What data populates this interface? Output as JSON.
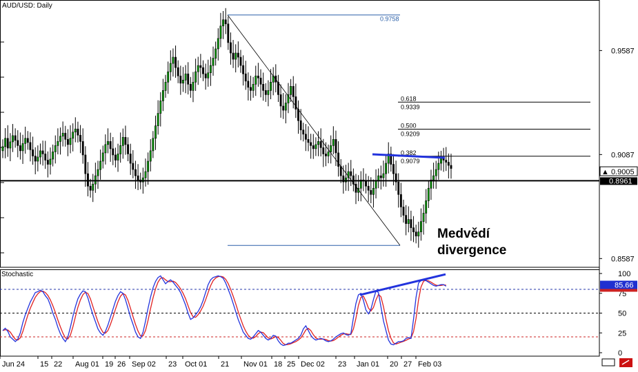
{
  "chart_data": [
    {
      "type": "candlestick",
      "title": "AUD/USD: Daily",
      "ylim": [
        0.8545,
        0.983
      ],
      "y_ticks": [
        "0.9587",
        "0.9087",
        "0.8587"
      ],
      "current_price_label": "▲ 0.9005",
      "reference_price_label": "0.8961",
      "reference_price": 0.8961,
      "current_price": 0.9005,
      "fib_high_label": "0.9758",
      "fib_high": 0.9758,
      "fib_low": 0.865,
      "fib_levels": [
        {
          "ratio": "0.618",
          "price_label": "0.9339",
          "price": 0.9339
        },
        {
          "ratio": "0.500",
          "price_label": "0.9209",
          "price": 0.9209
        },
        {
          "ratio": "0.382",
          "price_label": "0.9079",
          "price": 0.9079
        }
      ],
      "annotation_line1": "Medvědí",
      "annotation_line2": "divergence",
      "x_tick_labels": [
        "Jun 24",
        "15",
        "22",
        "Aug 01",
        "19",
        "26",
        "Sep 02",
        "23",
        "Oct 01",
        "21",
        "Nov 01",
        "18",
        "25",
        "Dec 02",
        "23",
        "Jan 01",
        "20",
        "27",
        "Feb 03"
      ],
      "closes": [
        0.9125,
        0.9165,
        0.9118,
        0.9148,
        0.9178,
        0.9155,
        0.913,
        0.9105,
        0.914,
        0.9165,
        0.9145,
        0.911,
        0.908,
        0.9055,
        0.9075,
        0.9105,
        0.909,
        0.906,
        0.904,
        0.9065,
        0.91,
        0.913,
        0.915,
        0.9175,
        0.919,
        0.916,
        0.9135,
        0.9165,
        0.9195,
        0.921,
        0.918,
        0.915,
        0.9085,
        0.8995,
        0.8935,
        0.8915,
        0.8945,
        0.8985,
        0.9015,
        0.9055,
        0.9095,
        0.9135,
        0.915,
        0.9115,
        0.9085,
        0.906,
        0.909,
        0.913,
        0.917,
        0.9135,
        0.909,
        0.9045,
        0.9015,
        0.8985,
        0.8965,
        0.8955,
        0.8975,
        0.9005,
        0.9055,
        0.9105,
        0.9165,
        0.9225,
        0.9285,
        0.9345,
        0.9395,
        0.9435,
        0.9485,
        0.9525,
        0.9555,
        0.9505,
        0.9465,
        0.943,
        0.9445,
        0.9475,
        0.9425,
        0.9395,
        0.9435,
        0.9485,
        0.9515,
        0.9505,
        0.9475,
        0.9455,
        0.948,
        0.9515,
        0.955,
        0.9595,
        0.9645,
        0.9705,
        0.9735,
        0.9715,
        0.9625,
        0.9575,
        0.9545,
        0.9575,
        0.9555,
        0.9515,
        0.9475,
        0.944,
        0.941,
        0.9395,
        0.9425,
        0.9465,
        0.9455,
        0.9425,
        0.9395,
        0.9375,
        0.9395,
        0.9435,
        0.9465,
        0.9435,
        0.9375,
        0.932,
        0.93,
        0.9335,
        0.9375,
        0.9415,
        0.9365,
        0.9305,
        0.925,
        0.9205,
        0.9185,
        0.916,
        0.9145,
        0.913,
        0.9115,
        0.9135,
        0.915,
        0.912,
        0.909,
        0.908,
        0.91,
        0.913,
        0.916,
        0.9095,
        0.903,
        0.8985,
        0.8955,
        0.8975,
        0.9005,
        0.8985,
        0.8945,
        0.8905,
        0.8925,
        0.8965,
        0.896,
        0.8935,
        0.8915,
        0.8895,
        0.8925,
        0.896,
        0.8985,
        0.8975,
        0.8995,
        0.9045,
        0.909,
        0.904,
        0.8995,
        0.8955,
        0.8895,
        0.8835,
        0.8795,
        0.8755,
        0.8775,
        0.8735,
        0.8715,
        0.8695,
        0.8715,
        0.8765,
        0.8805,
        0.8865,
        0.8925,
        0.8965,
        0.8985,
        0.9015,
        0.9045,
        0.907,
        0.906,
        0.905,
        0.9035,
        0.902
      ],
      "stoch_title": "Stochastic",
      "stoch_ylim": [
        0,
        100
      ],
      "stoch_y_ticks": [
        "100",
        "75",
        "50",
        "25",
        "0"
      ],
      "stoch_levels": [
        80,
        50,
        20
      ],
      "stoch_current_label": "85.66",
      "stoch_current": 85.66,
      "stoch_k": [
        28,
        31,
        27,
        20,
        17,
        14,
        17,
        25,
        38,
        48,
        56,
        64,
        70,
        76,
        77,
        79,
        77,
        72,
        68,
        60,
        50,
        42,
        32,
        24,
        18,
        14,
        20,
        32,
        46,
        58,
        68,
        74,
        78,
        77,
        69,
        58,
        48,
        39,
        30,
        25,
        22,
        27,
        35,
        45,
        55,
        65,
        72,
        77,
        75,
        67,
        56,
        45,
        36,
        26,
        20,
        18,
        26,
        40,
        56,
        70,
        82,
        90,
        95,
        97,
        92,
        87,
        90,
        92,
        89,
        85,
        81,
        76,
        68,
        60,
        50,
        42,
        44,
        48,
        52,
        58,
        66,
        76,
        86,
        92,
        95,
        96,
        97,
        96,
        94,
        88,
        80,
        72,
        62,
        52,
        42,
        34,
        26,
        22,
        18,
        17,
        20,
        24,
        28,
        26,
        22,
        18,
        16,
        18,
        22,
        21,
        15,
        11,
        9,
        10,
        12,
        12,
        14,
        16,
        18,
        22,
        30,
        34,
        28,
        22,
        18,
        16,
        17,
        18,
        17,
        15,
        14,
        15,
        17,
        20,
        22,
        24,
        25,
        23,
        22,
        24,
        44,
        62,
        73,
        75,
        66,
        54,
        49,
        55,
        67,
        78,
        76,
        58,
        40,
        28,
        16,
        11,
        10,
        12,
        14,
        14,
        15,
        18,
        19,
        18,
        42,
        70,
        88,
        91,
        92,
        91,
        89,
        87,
        85,
        84,
        85,
        86,
        86,
        84
      ]
    }
  ]
}
